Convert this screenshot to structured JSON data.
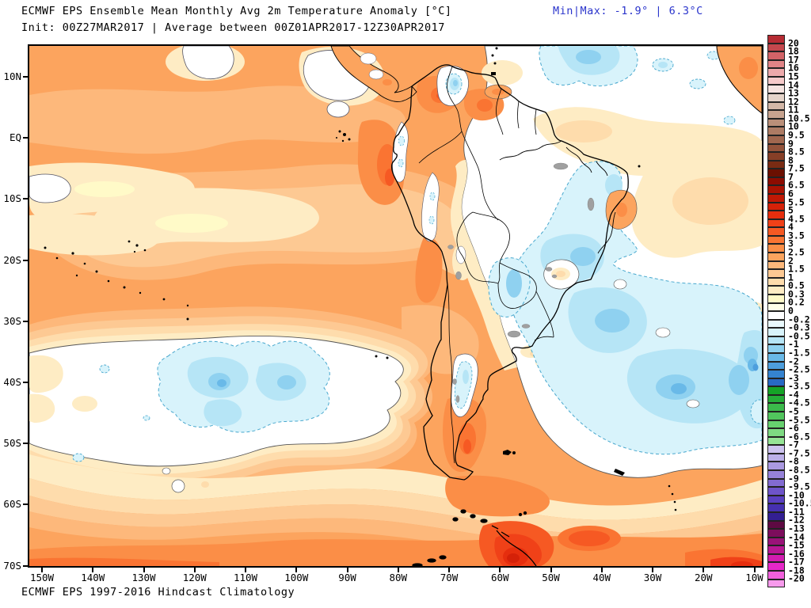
{
  "header": {
    "title": "ECMWF EPS Ensemble Mean Monthly Avg 2m Temperature Anomaly [°C]",
    "subtitle": "Init: 00Z27MAR2017 | Average between 00Z01APR2017-12Z30APR2017",
    "minmax_text": "Min|Max: -1.9° | 6.3°C",
    "accent_color": "#2b35cc"
  },
  "footer": {
    "caption": "ECMWF EPS 1997-2016 Hindcast Climatology"
  },
  "map": {
    "y_ticks": [
      "10N",
      "EQ",
      "10S",
      "20S",
      "30S",
      "40S",
      "50S",
      "60S",
      "70S"
    ],
    "x_ticks": [
      "150W",
      "140W",
      "130W",
      "120W",
      "110W",
      "100W",
      "90W",
      "80W",
      "70W",
      "60W",
      "50W",
      "40W",
      "30W",
      "20W",
      "10W"
    ],
    "lat_range": [
      "15N",
      "70S"
    ],
    "lon_range": [
      "150W",
      "10W"
    ],
    "region": "South America and adjacent Pacific / Atlantic oceans",
    "field": "2m temperature anomaly (filled contours)"
  },
  "colorbar": {
    "labels": [
      "20",
      "18",
      "17",
      "16",
      "15",
      "14",
      "13",
      "12",
      "11",
      "10.5",
      "10",
      "9.5",
      "9",
      "8.5",
      "8",
      "7.5",
      "7",
      "6.5",
      "6",
      "5.5",
      "5",
      "4.5",
      "4",
      "3.5",
      "3",
      "2.5",
      "2",
      "1.5",
      "1",
      "0.5",
      "0.3",
      "0.2",
      "0",
      "-0.2",
      "-0.3",
      "-0.5",
      "-1",
      "-1.5",
      "-2",
      "-2.5",
      "-3",
      "-3.5",
      "-4",
      "-4.5",
      "-5",
      "-5.5",
      "-6",
      "-6.5",
      "-7",
      "-7.5",
      "-8",
      "-8.5",
      "-9",
      "-9.5",
      "-10",
      "-10.5",
      "-11",
      "-12",
      "-13",
      "-14",
      "-15",
      "-16",
      "-17",
      "-18",
      "-20"
    ],
    "colors": [
      "#b62b33",
      "#c4474d",
      "#d26367",
      "#e08487",
      "#eda9ab",
      "#f6caca",
      "#f5e4e1",
      "#e5d4ca",
      "#d3b7a7",
      "#c7a38f",
      "#ba8f79",
      "#ad7b64",
      "#a0674f",
      "#93533b",
      "#863f27",
      "#792b13",
      "#6b1001",
      "#8c0c01",
      "#a81202",
      "#c01804",
      "#d52108",
      "#e62e0e",
      "#f04118",
      "#f65923",
      "#fa7432",
      "#fb8e47",
      "#fca45e",
      "#fdb87b",
      "#fdc993",
      "#fedcac",
      "#feecc4",
      "#fffac8",
      "#ffffe8",
      "#ffffff",
      "#eafafd",
      "#d8f3fb",
      "#b6e5f6",
      "#8fd1f0",
      "#69b9e8",
      "#4d9edd",
      "#3583d0",
      "#2869c4",
      "#15a327",
      "#25ae38",
      "#3bba4b",
      "#51c55d",
      "#67d06f",
      "#7eda82",
      "#96e496",
      "#cdc3ef",
      "#bcb0e9",
      "#aa99e1",
      "#9682d9",
      "#826bd1",
      "#6e54c9",
      "#5a40c0",
      "#4630b0",
      "#331f92",
      "#5e0a42",
      "#7c0d5c",
      "#9a1278",
      "#b81794",
      "#d21cb0",
      "#e627c8",
      "#f160dc",
      "#f79aec"
    ]
  }
}
